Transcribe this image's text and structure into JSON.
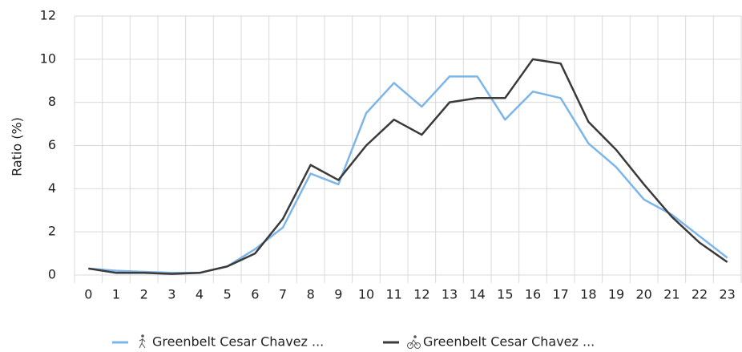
{
  "chart_data": {
    "type": "line",
    "y_label": "Ratio (%)",
    "categories": [
      "0",
      "1",
      "2",
      "3",
      "4",
      "5",
      "6",
      "7",
      "8",
      "9",
      "10",
      "11",
      "12",
      "13",
      "14",
      "15",
      "16",
      "17",
      "18",
      "19",
      "20",
      "21",
      "22",
      "23"
    ],
    "series": [
      {
        "name": "Greenbelt Cesar Chavez ...",
        "color": "#7cb5e8",
        "values": [
          0.3,
          0.2,
          0.15,
          0.1,
          0.1,
          0.4,
          1.2,
          2.2,
          4.7,
          4.2,
          7.5,
          8.9,
          7.8,
          9.2,
          9.2,
          7.2,
          8.5,
          8.2,
          6.1,
          5.0,
          3.5,
          2.8,
          1.8,
          0.8
        ]
      },
      {
        "name": "Greenbelt Cesar Chavez ...",
        "color": "#3a3a3a",
        "values": [
          0.3,
          0.1,
          0.1,
          0.05,
          0.1,
          0.4,
          1.0,
          2.6,
          5.1,
          4.4,
          6.0,
          7.2,
          6.5,
          8.0,
          8.2,
          8.2,
          10.0,
          9.8,
          7.1,
          5.8,
          4.2,
          2.7,
          1.5,
          0.6
        ]
      }
    ],
    "ylim": [
      0,
      12
    ],
    "yticks": [
      0,
      2,
      4,
      6,
      8,
      10,
      12
    ],
    "grid": true,
    "legend": "bottom"
  }
}
